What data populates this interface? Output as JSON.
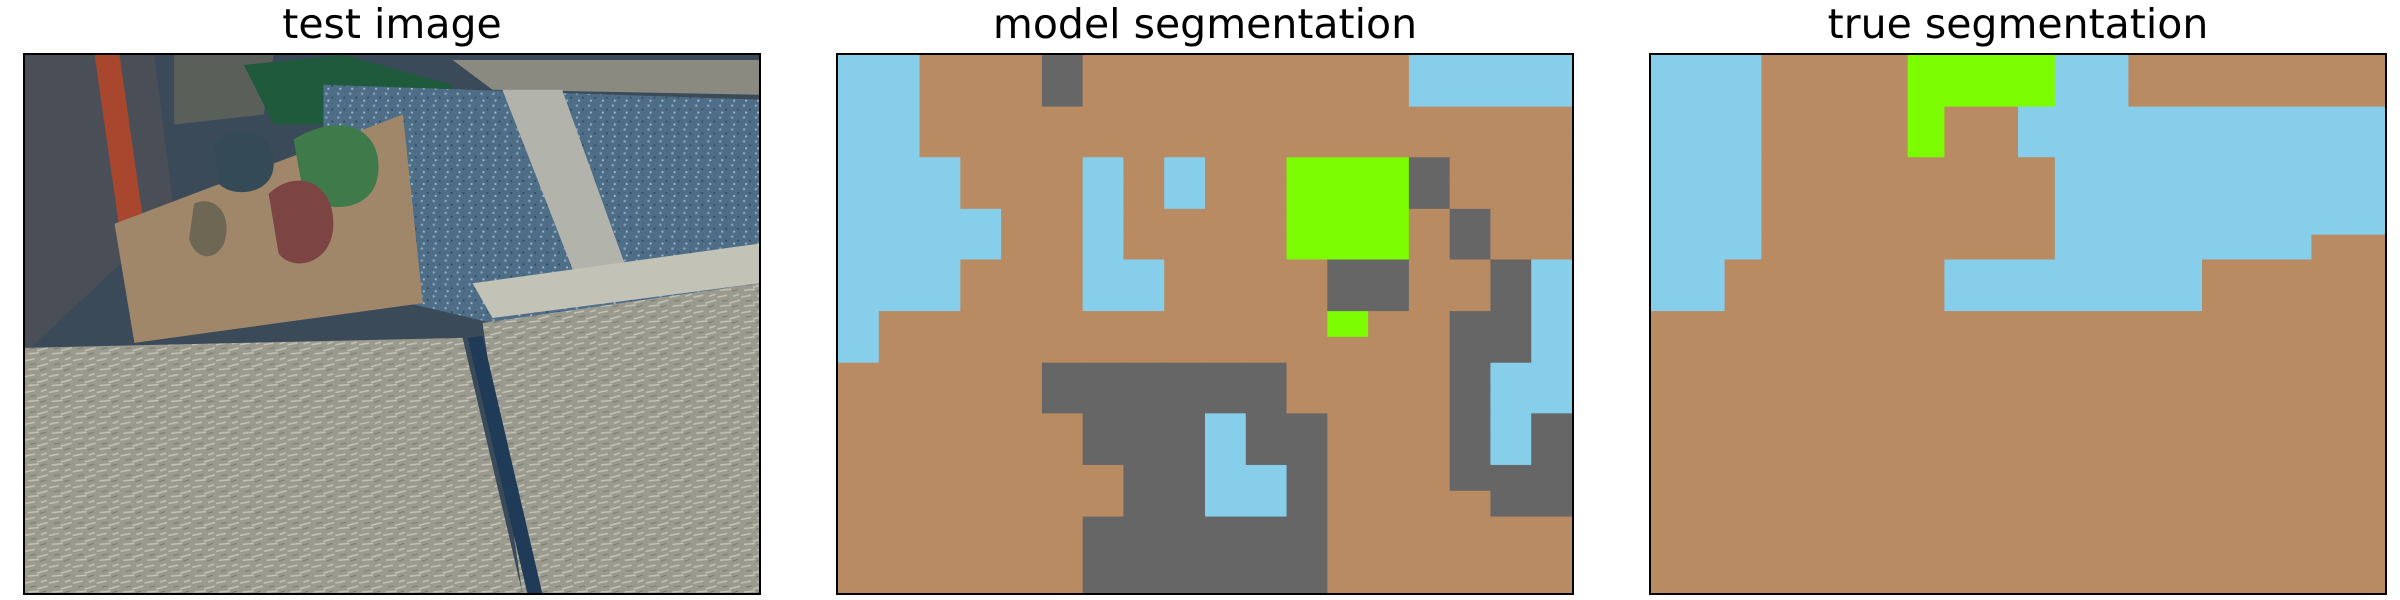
{
  "panels": [
    {
      "title": "test image"
    },
    {
      "title": "model segmentation"
    },
    {
      "title": "true segmentation"
    }
  ],
  "colors": {
    "class_brown": "#b98b62",
    "class_sky": "#87ceeb",
    "class_green": "#7cfc00",
    "class_gray": "#666666",
    "frame_border": "#000000"
  },
  "model_segmentation_grid": [
    "SSBBBGBBBBBBBBSSSS",
    "SSBBBGBBBBBBBBSSSS",
    "SSBBBBBBBBBBBBBBBB",
    "SSBBBBBBBBBBBBBBBB",
    "SSSBBBSBSBBLLLGBBB",
    "SSSBBBSBSBBLLLGBBB",
    "SSSSBBSBBBBLLLBGBB",
    "SSSSBBSBBBBLLLBGBB",
    "SSSBBBSSBBBBGGBBGS",
    "SSSBBBSSBBBBGGBBGS",
    "SBBBBBBBBBBBLBBGGS",
    "SBBBBBBBBBBBBBBGGS",
    "BBBBBGGGGGGBBBBGSS",
    "BBBBBGGGGGGBBBBGSS",
    "BBBBBBGGGSGGBBBGSG",
    "BBBBBBGGGSGGBBBGSG",
    "BBBBBBBGGSSGBBBGGG",
    "BBBBBBBGGSSGBBBBGG",
    "BBBBBBGGGGGGBBBBBB",
    "BBBBBBGGGGGGBBBBBB",
    "BBBBBBGGGGGGBBBBBB"
  ],
  "true_segmentation_grid": [
    "SSSBBBBLLLLSSBBBBBBB",
    "SSSBBBBLLLLSSBBBBBBB",
    "SSSBBBBLBBSSSSSSSSSS",
    "SSSBBBBLBBSSSSSSSSSS",
    "SSSBBBBBBBBSSSSSSSSS",
    "SSSBBBBBBBBSSSSSSSSS",
    "SSSBBBBBBBBSSSSSSSSS",
    "SSSBBBBBBBBSSSSSSSBB",
    "SSBBBBBBSSSSSSSBBBBB",
    "SSBBBBBBSSSSSSSBBBBB",
    "BBBBBBBBBBBBBBBBBBBB",
    "BBBBBBBBBBBBBBBBBBBB",
    "BBBBBBBBBBBBBBBBBBBB",
    "BBBBBBBBBBBBBBBBBBBB",
    "BBBBBBBBBBBBBBBBBBBB",
    "BBBBBBBBBBBBBBBBBBBB",
    "BBBBBBBBBBBBBBBBBBBB",
    "BBBBBBBBBBBBBBBBBBBB",
    "BBBBBBBBBBBBBBBBBBBB",
    "BBBBBBBBBBBBBBBBBBBB",
    "BBBBBBBBBBBBBBBBBBBB"
  ]
}
